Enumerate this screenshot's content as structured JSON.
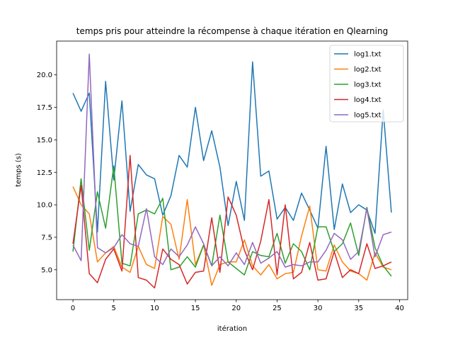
{
  "chart_data": {
    "type": "line",
    "title": "temps pris pour atteindre la récompense à chaque itération en Qlearning",
    "xlabel": "itération",
    "ylabel": "temps (s)",
    "xlim": [
      -2,
      41
    ],
    "ylim": [
      2.7,
      22.6
    ],
    "xticks": [
      0,
      5,
      10,
      15,
      20,
      25,
      30,
      35,
      40
    ],
    "yticks": [
      5.0,
      7.5,
      10.0,
      12.5,
      15.0,
      17.5,
      20.0
    ],
    "ytick_labels": [
      "5.0",
      "7.5",
      "10.0",
      "12.5",
      "15.0",
      "17.5",
      "20.0"
    ],
    "legend_position": "top-right",
    "x": [
      0,
      1,
      2,
      3,
      4,
      5,
      6,
      7,
      8,
      9,
      10,
      11,
      12,
      13,
      14,
      15,
      16,
      17,
      18,
      19,
      20,
      21,
      22,
      23,
      24,
      25,
      26,
      27,
      28,
      29,
      30,
      31,
      32,
      33,
      34,
      35,
      36,
      37,
      38,
      39
    ],
    "series": [
      {
        "name": "log1.txt",
        "color": "#1f77b4",
        "values": [
          18.6,
          17.2,
          18.6,
          7.9,
          19.5,
          11.9,
          18.0,
          9.5,
          13.1,
          12.3,
          12.0,
          9.2,
          10.7,
          13.8,
          12.9,
          17.5,
          13.4,
          15.7,
          12.9,
          8.4,
          11.8,
          8.8,
          21.0,
          12.2,
          12.6,
          8.9,
          9.8,
          8.8,
          10.9,
          9.6,
          8.2,
          14.5,
          8.1,
          11.6,
          9.4,
          10.0,
          9.6,
          7.8,
          17.3,
          9.4
        ]
      },
      {
        "name": "log2.txt",
        "color": "#ff7f0e",
        "values": [
          11.4,
          10.0,
          9.3,
          5.6,
          6.3,
          6.8,
          5.2,
          4.8,
          6.8,
          5.4,
          5.1,
          9.1,
          8.5,
          5.8,
          10.4,
          5.4,
          6.9,
          3.8,
          5.4,
          5.6,
          5.6,
          7.3,
          5.3,
          4.6,
          5.4,
          4.3,
          4.7,
          4.8,
          7.6,
          9.9,
          5.0,
          4.9,
          6.9,
          5.6,
          4.9,
          4.7,
          4.2,
          6.3,
          5.2,
          5.0
        ]
      },
      {
        "name": "log3.txt",
        "color": "#2ca02c",
        "values": [
          6.4,
          12.0,
          6.5,
          11.0,
          8.2,
          13.0,
          5.5,
          5.3,
          9.3,
          9.6,
          9.3,
          10.5,
          5.0,
          5.2,
          6.0,
          5.2,
          6.9,
          5.3,
          9.2,
          5.6,
          5.1,
          4.6,
          6.4,
          6.1,
          6.0,
          7.8,
          5.5,
          7.0,
          6.4,
          5.0,
          8.3,
          8.3,
          6.4,
          7.0,
          8.6,
          6.1,
          9.8,
          6.7,
          5.3,
          4.5
        ]
      },
      {
        "name": "log4.txt",
        "color": "#d62728",
        "values": [
          7.0,
          11.5,
          4.7,
          4.0,
          5.8,
          6.6,
          4.9,
          13.8,
          4.4,
          4.2,
          3.6,
          6.6,
          5.8,
          5.4,
          3.9,
          4.8,
          4.9,
          9.0,
          4.8,
          10.6,
          9.2,
          6.5,
          5.0,
          7.2,
          10.4,
          4.6,
          10.0,
          4.3,
          4.8,
          7.1,
          4.2,
          4.3,
          6.4,
          4.4,
          5.0,
          4.7,
          7.0,
          5.1,
          5.3,
          5.6
        ]
      },
      {
        "name": "log5.txt",
        "color": "#9467bd",
        "values": [
          6.9,
          5.7,
          21.6,
          6.7,
          6.3,
          6.7,
          7.7,
          7.0,
          6.8,
          9.7,
          6.0,
          5.4,
          6.6,
          6.0,
          6.9,
          8.3,
          7.0,
          5.3,
          6.0,
          5.3,
          6.3,
          5.4,
          7.1,
          5.5,
          5.9,
          6.4,
          5.2,
          5.4,
          5.3,
          5.6,
          5.6,
          6.5,
          7.8,
          7.3,
          5.8,
          6.4,
          9.7,
          6.0,
          7.7,
          7.9
        ]
      }
    ]
  }
}
